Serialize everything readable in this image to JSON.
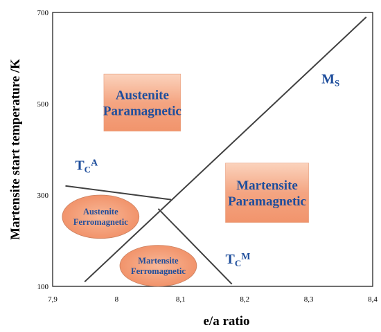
{
  "chart_data": {
    "type": "diagram",
    "xlabel": "e/a ratio",
    "ylabel": "Martensite start temperature /K",
    "xlim": [
      7.9,
      8.4
    ],
    "ylim": [
      100,
      700
    ],
    "x_ticks": [
      "7,9",
      "8",
      "8,1",
      "8,2",
      "8,3",
      "8,4"
    ],
    "x_tick_values": [
      7.9,
      8.0,
      8.1,
      8.2,
      8.3,
      8.4
    ],
    "y_ticks": [
      "100",
      "300",
      "500",
      "700"
    ],
    "y_tick_values": [
      100,
      300,
      500,
      700
    ],
    "lines": [
      {
        "name": "Ms",
        "label_main": "M",
        "label_sub": "S",
        "label_sup": "",
        "points": [
          [
            7.95,
            110
          ],
          [
            8.39,
            690
          ]
        ],
        "label_at": [
          8.32,
          545
        ]
      },
      {
        "name": "TcA",
        "label_main": "T",
        "label_sub": "C",
        "label_sup": "A",
        "points": [
          [
            7.92,
            320
          ],
          [
            8.085,
            290
          ]
        ],
        "label_at": [
          7.935,
          355
        ]
      },
      {
        "name": "TcM",
        "label_main": "T",
        "label_sub": "C",
        "label_sup": "M",
        "points": [
          [
            8.065,
            270
          ],
          [
            8.18,
            105
          ]
        ],
        "label_at": [
          8.17,
          150
        ]
      }
    ],
    "regions": [
      {
        "shape": "rect",
        "lines": [
          "Austenite",
          "Paramagnetic"
        ],
        "x": [
          7.98,
          8.1
        ],
        "y": [
          440,
          565
        ],
        "color": "#f4a582",
        "text_color": "#1f4e9c"
      },
      {
        "shape": "rect",
        "lines": [
          "Martensite",
          "Paramagnetic"
        ],
        "x": [
          8.17,
          8.3
        ],
        "y": [
          240,
          370
        ],
        "color": "#f4a582",
        "text_color": "#1f4e9c"
      },
      {
        "shape": "ellipse",
        "lines": [
          "Austenite",
          "Ferromagnetic"
        ],
        "x": [
          7.915,
          8.035
        ],
        "y": [
          205,
          300
        ],
        "color": "#f4a582",
        "text_color": "#1f4e9c"
      },
      {
        "shape": "ellipse",
        "lines": [
          "Martensite",
          "Ferromagnetic"
        ],
        "x": [
          8.005,
          8.125
        ],
        "y": [
          100,
          190
        ],
        "color": "#f4a582",
        "text_color": "#1f4e9c"
      }
    ],
    "line_color": "#404040",
    "grid": false
  }
}
